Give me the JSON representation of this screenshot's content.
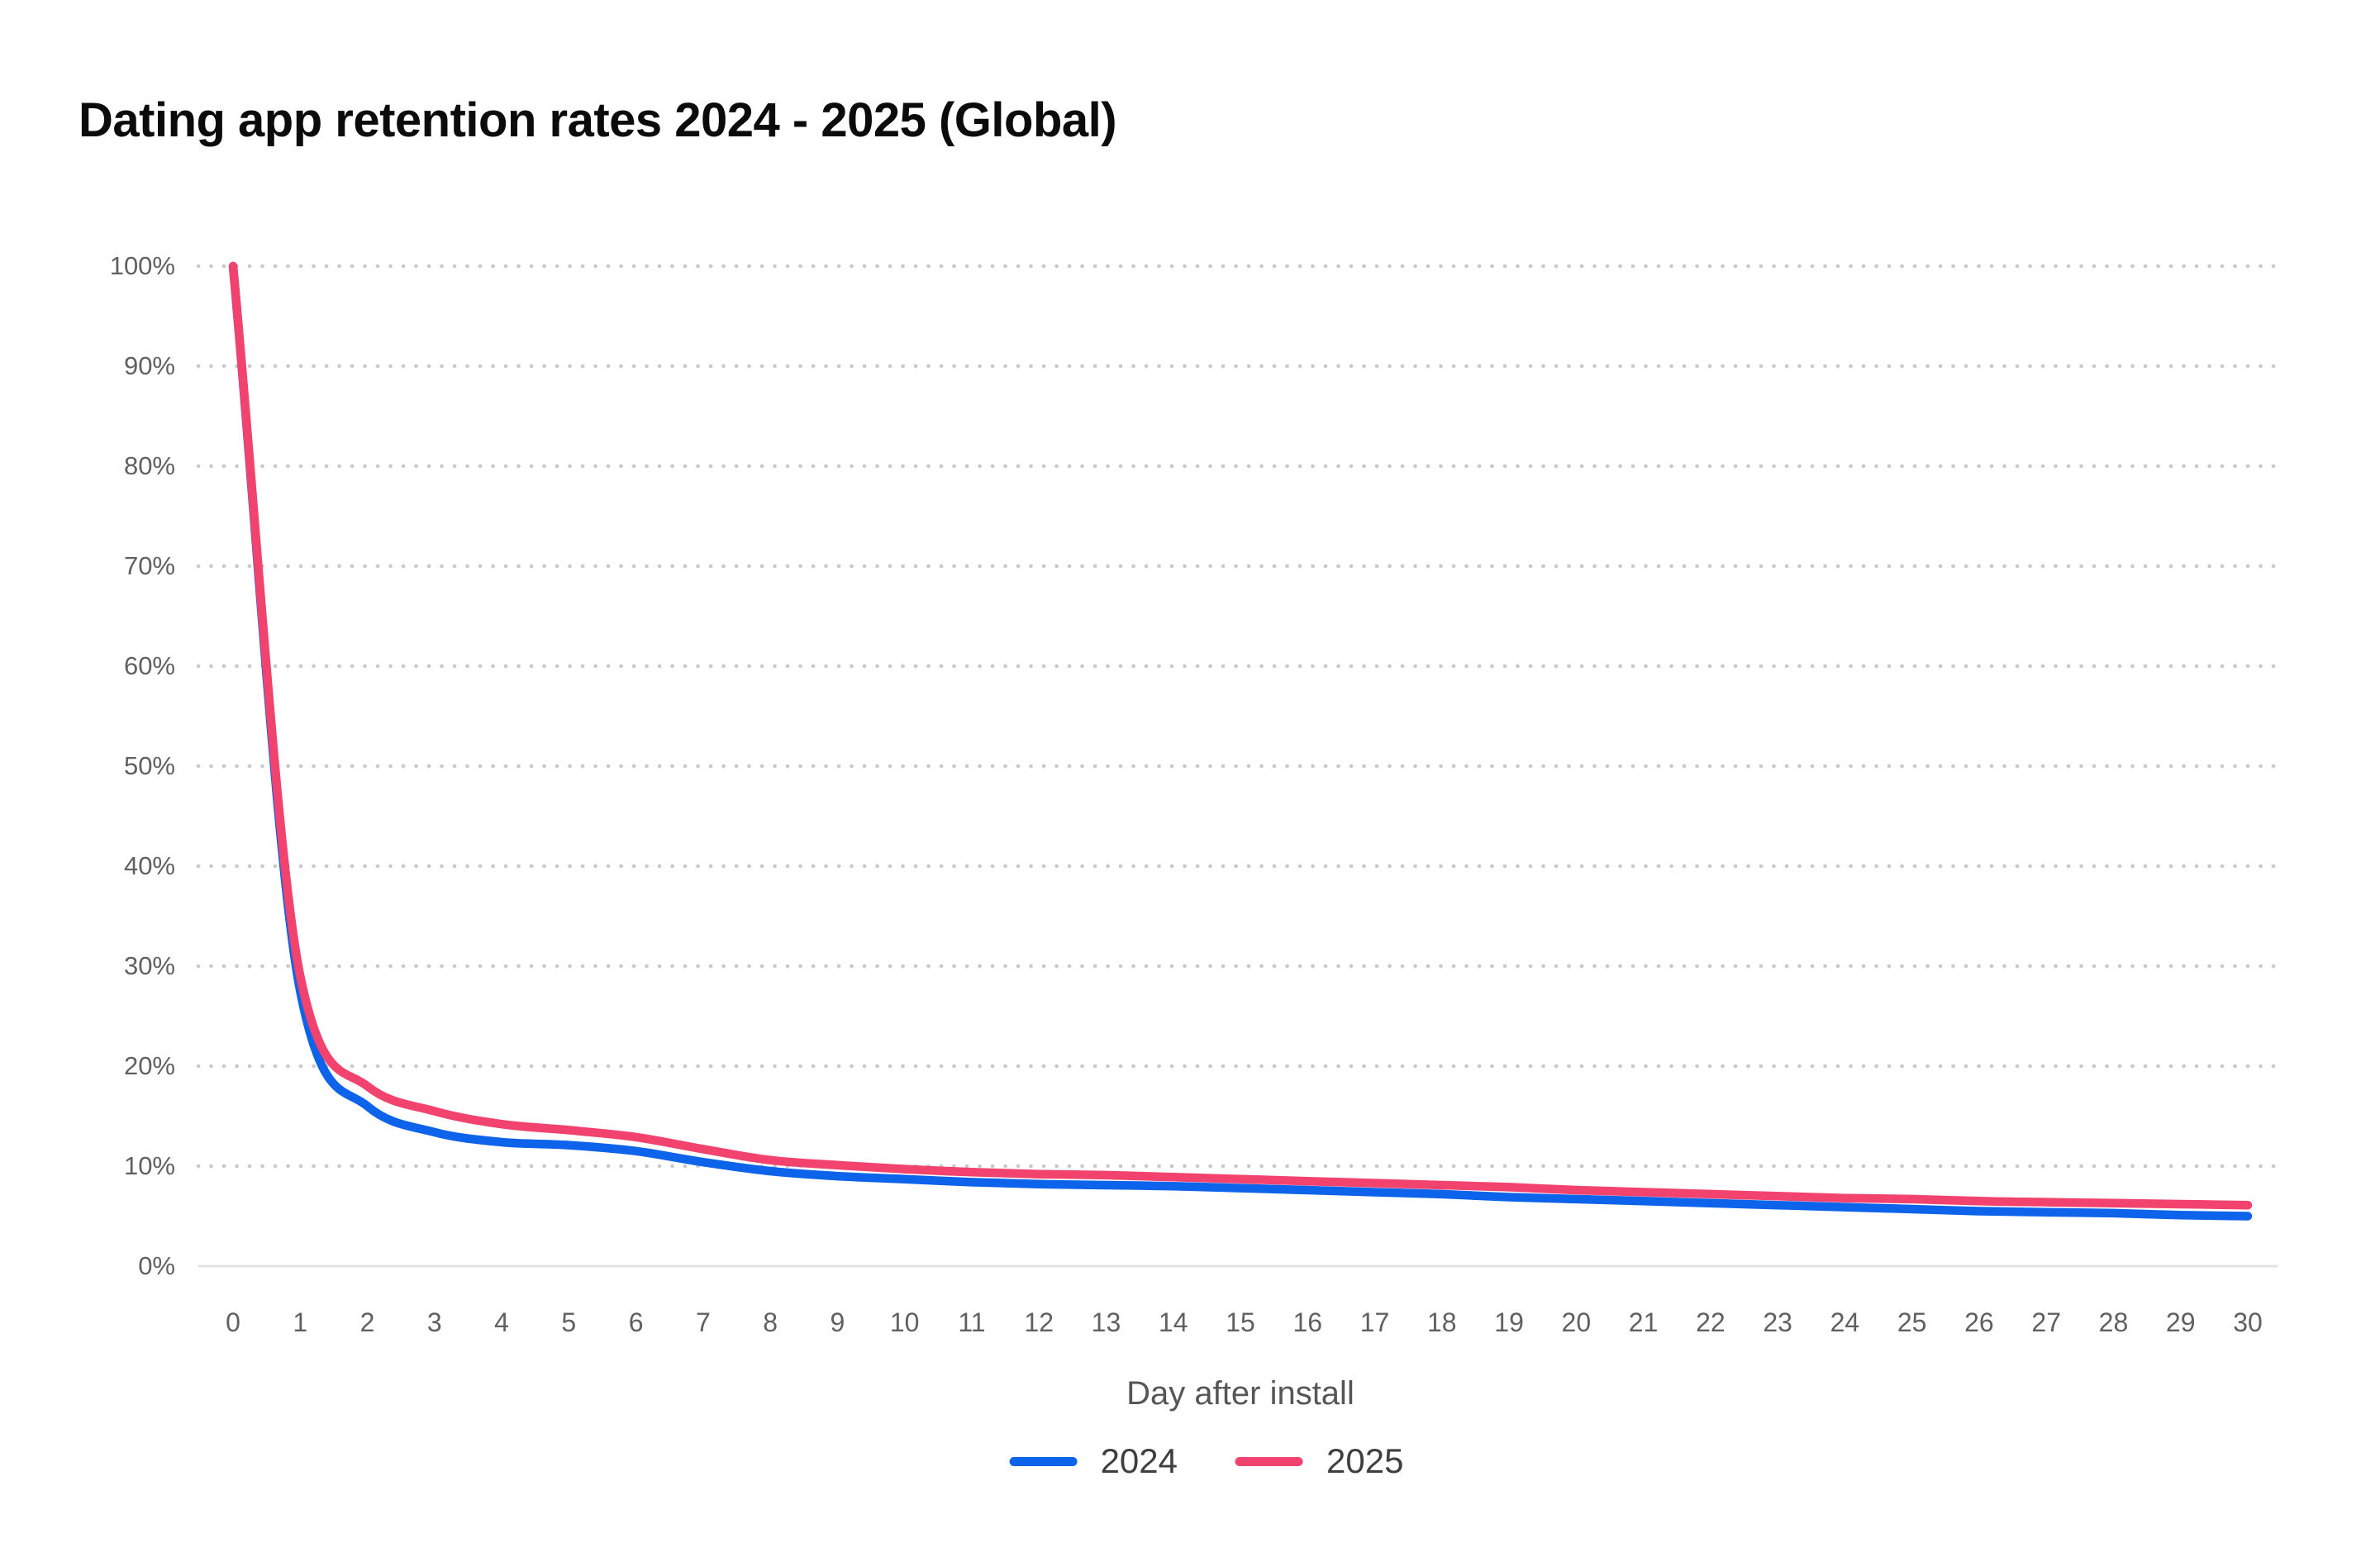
{
  "chart_data": {
    "type": "line",
    "title": "Dating app retention rates 2024 - 2025 (Global)",
    "xlabel": "Day after install",
    "ylabel": "",
    "x": [
      0,
      1,
      2,
      3,
      4,
      5,
      6,
      7,
      8,
      9,
      10,
      11,
      12,
      13,
      14,
      15,
      16,
      17,
      18,
      19,
      20,
      21,
      22,
      23,
      24,
      25,
      26,
      27,
      28,
      29,
      30
    ],
    "series": [
      {
        "name": "2024",
        "color": "#0D63EA",
        "values": [
          100,
          27.5,
          16,
          13.4,
          12.4,
          12.1,
          11.5,
          10.4,
          9.5,
          9.0,
          8.7,
          8.4,
          8.2,
          8.1,
          8.0,
          7.8,
          7.6,
          7.4,
          7.2,
          6.9,
          6.7,
          6.5,
          6.3,
          6.1,
          5.9,
          5.7,
          5.5,
          5.4,
          5.3,
          5.1,
          5.0
        ]
      },
      {
        "name": "2025",
        "color": "#F2436F",
        "values": [
          100,
          29,
          18,
          15.5,
          14.2,
          13.6,
          12.9,
          11.7,
          10.6,
          10.1,
          9.7,
          9.4,
          9.2,
          9.1,
          8.9,
          8.7,
          8.5,
          8.3,
          8.1,
          7.9,
          7.6,
          7.4,
          7.2,
          7.0,
          6.8,
          6.7,
          6.5,
          6.4,
          6.3,
          6.2,
          6.1
        ]
      }
    ],
    "ylim": [
      0,
      100
    ],
    "y_ticks": [
      0,
      10,
      20,
      30,
      40,
      50,
      60,
      70,
      80,
      90,
      100
    ],
    "y_tick_suffix": "%",
    "grid": "horizontal-dotted",
    "legend_position": "bottom-center",
    "colors": {
      "grid_dot": "#c9c9c9",
      "baseline": "#e2e2e2"
    }
  }
}
